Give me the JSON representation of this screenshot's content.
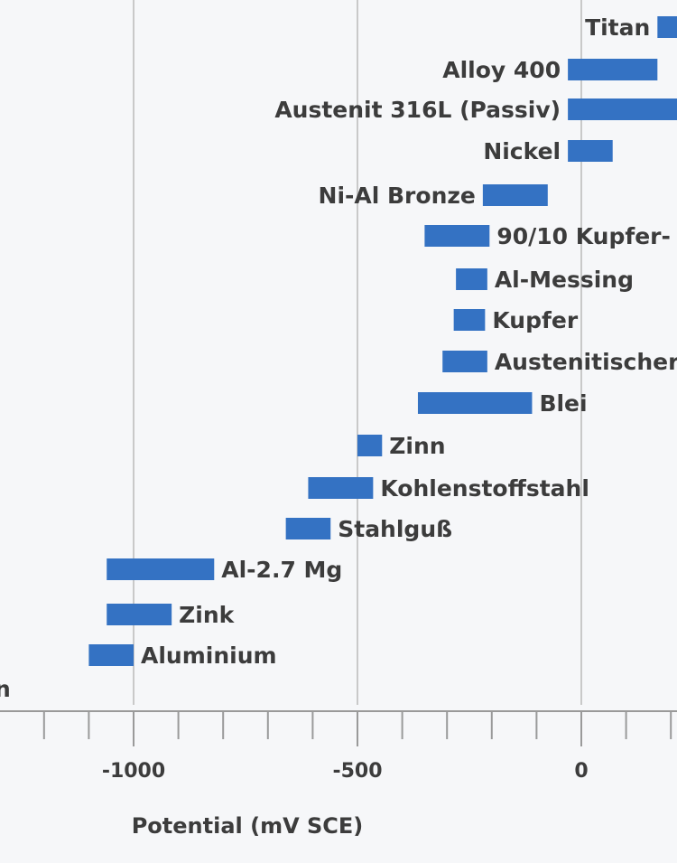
{
  "chart_data": {
    "type": "bar",
    "orientation": "horizontal-range",
    "xlabel": "Potential (mV SCE)",
    "x_ticks": [
      "-1000",
      "-500",
      "0"
    ],
    "grid": true,
    "bar_color": "#3472c3",
    "bars": [
      {
        "label": "Titan",
        "range": [
          170,
          250
        ],
        "label_side": "left"
      },
      {
        "label": "Alloy 400",
        "range": [
          -30,
          170
        ],
        "label_side": "left"
      },
      {
        "label": "Austenit 316L (Passiv)",
        "range": [
          -30,
          250
        ],
        "label_side": "left"
      },
      {
        "label": "Nickel",
        "range": [
          -30,
          70
        ],
        "label_side": "left"
      },
      {
        "label": "Ni-Al Bronze",
        "range": [
          -220,
          -75
        ],
        "label_side": "left"
      },
      {
        "label": "90/10 Kupfer-",
        "range": [
          -350,
          -205
        ],
        "label_side": "right"
      },
      {
        "label": "Al-Messing",
        "range": [
          -280,
          -210
        ],
        "label_side": "right"
      },
      {
        "label": "Kupfer",
        "range": [
          -285,
          -215
        ],
        "label_side": "right"
      },
      {
        "label": "Austenitischer",
        "range": [
          -310,
          -210
        ],
        "label_side": "right"
      },
      {
        "label": "Blei",
        "range": [
          -365,
          -110
        ],
        "label_side": "right"
      },
      {
        "label": "Zinn",
        "range": [
          -500,
          -445
        ],
        "label_side": "right"
      },
      {
        "label": "Kohlenstoffstahl",
        "range": [
          -610,
          -465
        ],
        "label_side": "right"
      },
      {
        "label": "Stahlguß",
        "range": [
          -660,
          -560
        ],
        "label_side": "right"
      },
      {
        "label": "Al-2.7 Mg",
        "range": [
          -1060,
          -820
        ],
        "label_side": "right"
      },
      {
        "label": "Zink",
        "range": [
          -1060,
          -915
        ],
        "label_side": "right"
      },
      {
        "label": "Aluminium",
        "range": [
          -1100,
          -1000
        ],
        "label_side": "right"
      },
      {
        "label": "n",
        "range": null,
        "label_side": "right"
      }
    ]
  }
}
